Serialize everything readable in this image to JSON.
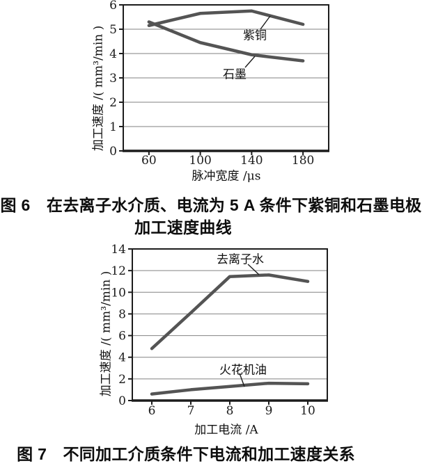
{
  "page": {
    "background": "#ffffff"
  },
  "colors": {
    "series_line": "#545454",
    "grid_line": "#828282",
    "frame": "#1c1c1c",
    "tick_text": "#1b1b1b"
  },
  "chart_data": [
    {
      "figure": "图 6",
      "type": "line",
      "categories": [
        "60",
        "100",
        "140",
        "180"
      ],
      "xlabel": "脉冲宽度 /μs",
      "ylabel": "加工速度 /( mm³/min )",
      "ylim": [
        0,
        6
      ],
      "ytick_step": 1,
      "grid": true,
      "legend_position": "inline-annotations",
      "series": [
        {
          "name": "紫铜",
          "values": [
            5.15,
            5.65,
            5.75,
            5.2
          ]
        },
        {
          "name": "石墨",
          "values": [
            5.3,
            4.45,
            3.95,
            3.7
          ]
        }
      ],
      "caption_line1": "图 6　在去离子水介质、电流为 5 A 条件下紫铜和石墨电极",
      "caption_line2": "加工速度曲线"
    },
    {
      "figure": "图 7",
      "type": "line",
      "categories": [
        "6",
        "7",
        "8",
        "9",
        "10"
      ],
      "xlabel": "加工电流 /A",
      "ylabel": "加工速度 /( mm³/min )",
      "ylim": [
        0,
        14
      ],
      "ytick_step": 2,
      "grid": true,
      "legend_position": "inline-annotations",
      "series": [
        {
          "name": "去离子水",
          "values": [
            4.8,
            8.1,
            11.45,
            11.6,
            11.0
          ]
        },
        {
          "name": "火花机油",
          "values": [
            0.6,
            1.0,
            1.3,
            1.6,
            1.55
          ]
        }
      ],
      "caption_line1": "图 7　不同加工介质条件下电流和加工速度关系"
    }
  ]
}
